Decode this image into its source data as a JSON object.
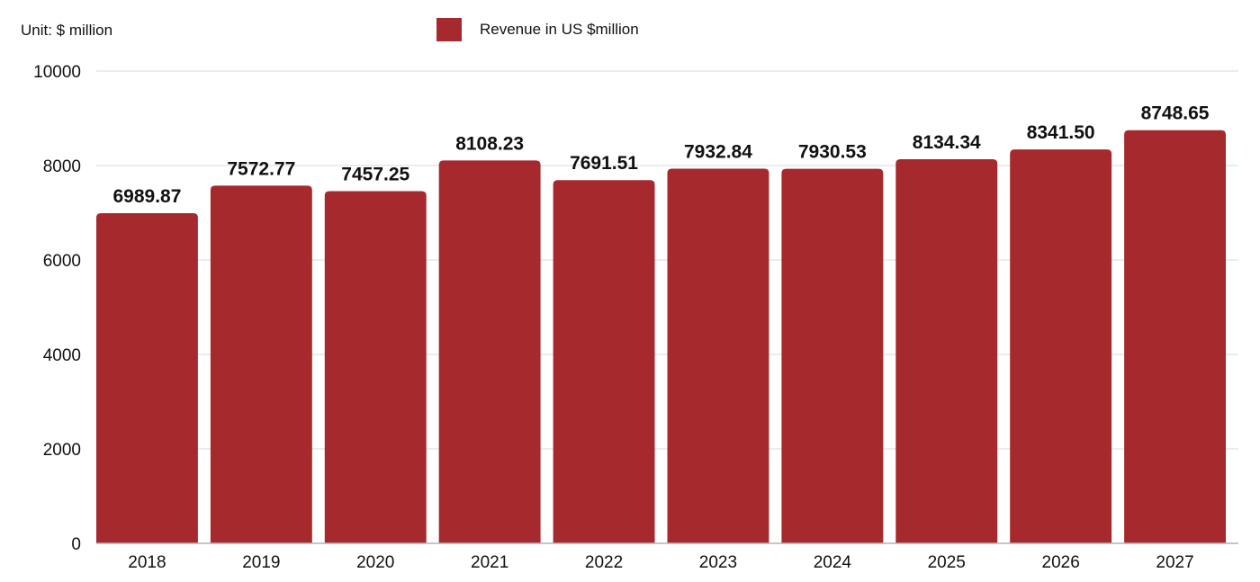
{
  "unit_label": "Unit: $ million",
  "legend": {
    "label": "Revenue in US $million",
    "color": "#a6292d"
  },
  "colors": {
    "bar": "#a6292d",
    "grid": "#d9d9d9",
    "axis": "#b3b3b3"
  },
  "chart_data": {
    "type": "bar",
    "categories": [
      "2018",
      "2019",
      "2020",
      "2021",
      "2022",
      "2023",
      "2024",
      "2025",
      "2026",
      "2027"
    ],
    "series": [
      {
        "name": "Revenue in US $million",
        "values": [
          6989.87,
          7572.77,
          7457.25,
          8108.23,
          7691.51,
          7932.84,
          7930.53,
          8134.34,
          8341.5,
          8748.65
        ]
      }
    ],
    "data_labels": [
      "6989.87",
      "7572.77",
      "7457.25",
      "8108.23",
      "7691.51",
      "7932.84",
      "7930.53",
      "8134.34",
      "8341.50",
      "8748.65"
    ],
    "y_ticks": [
      0,
      2000,
      4000,
      6000,
      8000,
      10000
    ],
    "ylim": [
      0,
      10000
    ],
    "grid": true,
    "legend_position": "top"
  }
}
